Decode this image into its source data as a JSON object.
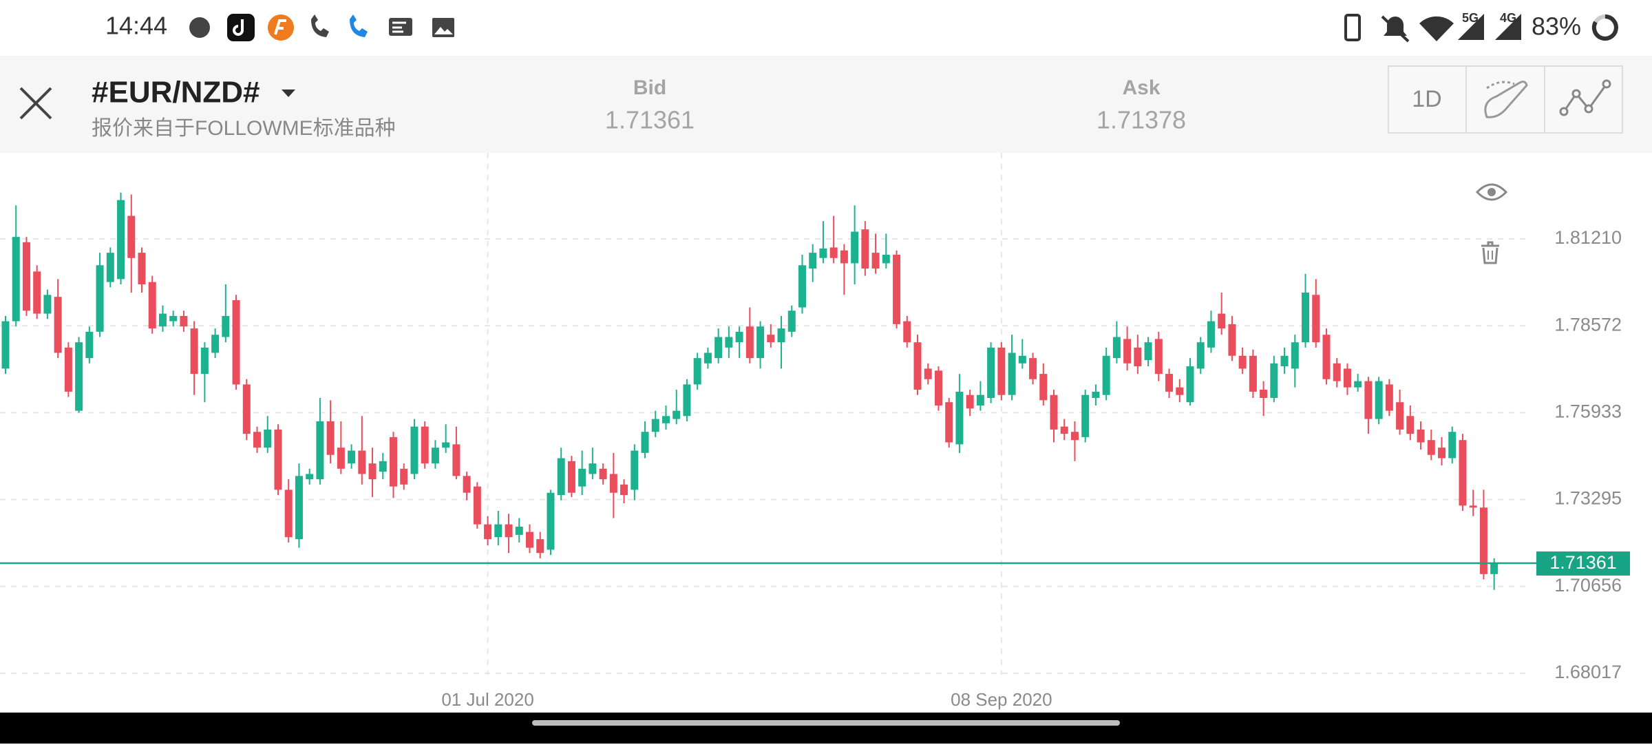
{
  "status_bar": {
    "time": "14:44",
    "network_labels": [
      "5G",
      "4G"
    ],
    "battery": "83%"
  },
  "header": {
    "symbol": "#EUR/NZD#",
    "subtitle": "报价来自于FOLLOWME标准品种",
    "bid": {
      "label": "Bid",
      "value": 1.71361
    },
    "ask": {
      "label": "Ask",
      "value": 1.71378
    },
    "timeframe": "1D"
  },
  "chart_data": {
    "type": "candlestick",
    "up_color": "#1db28f",
    "down_color": "#ea4d5b",
    "price_line_color": "#17a586",
    "grid": true,
    "ylim": [
      1.67555,
      1.83824
    ],
    "yticks": [
      {
        "value": 1.8121,
        "label": "1.81210"
      },
      1.78572,
      1.75933,
      1.73295,
      1.70656,
      1.68017
    ],
    "last_price": 1.71361,
    "categories": [
      null,
      null,
      null,
      null,
      null,
      null,
      null,
      null,
      null,
      null,
      null,
      null,
      null,
      null,
      null,
      null,
      null,
      null,
      null,
      null,
      null,
      null,
      null,
      null,
      null,
      null,
      null,
      null,
      null,
      null,
      null,
      null,
      null,
      null,
      null,
      null,
      null,
      null,
      null,
      null,
      null,
      null,
      null,
      null,
      null,
      null,
      "01 Jul 2020",
      null,
      null,
      null,
      null,
      null,
      null,
      null,
      null,
      null,
      null,
      null,
      null,
      null,
      null,
      null,
      null,
      null,
      null,
      null,
      null,
      null,
      null,
      null,
      null,
      null,
      null,
      null,
      null,
      null,
      null,
      null,
      null,
      null,
      null,
      null,
      null,
      null,
      null,
      null,
      null,
      null,
      null,
      null,
      null,
      null,
      null,
      null,
      null,
      "08 Sep 2020",
      null,
      null,
      null,
      null,
      null,
      null,
      null,
      null,
      null,
      null,
      null,
      null,
      null,
      null,
      null,
      null,
      null,
      null,
      null,
      null,
      null,
      null,
      null,
      null,
      null,
      null,
      null,
      null,
      null,
      null,
      null,
      null,
      null,
      null,
      null,
      null,
      null,
      null,
      null,
      null,
      null,
      null,
      null,
      null,
      null,
      null,
      null
    ],
    "candles": [
      [
        1.7727,
        1.7887,
        1.7711,
        1.7871
      ],
      [
        1.7871,
        1.8223,
        1.7855,
        1.8127
      ],
      [
        1.8111,
        1.8127,
        1.7887,
        1.7903
      ],
      [
        1.8022,
        1.8041,
        1.7878,
        1.7894
      ],
      [
        1.7894,
        1.7967,
        1.7878,
        1.7951
      ],
      [
        1.7945,
        1.7999,
        1.7759,
        1.7775
      ],
      [
        1.7791,
        1.7807,
        1.7641,
        1.7657
      ],
      [
        1.7599,
        1.7823,
        1.7593,
        1.7807
      ],
      [
        1.7759,
        1.7855,
        1.7743,
        1.7839
      ],
      [
        1.7839,
        1.8079,
        1.7823,
        1.8041
      ],
      [
        1.799,
        1.8095,
        1.7974,
        1.8079
      ],
      [
        1.7999,
        1.8262,
        1.7983,
        1.8239
      ],
      [
        1.8191,
        1.8256,
        1.7958,
        1.8063
      ],
      [
        1.8079,
        1.8095,
        1.7958,
        1.7983
      ],
      [
        1.799,
        1.8009,
        1.7833,
        1.7849
      ],
      [
        1.7855,
        1.7919,
        1.7839,
        1.7894
      ],
      [
        1.7871,
        1.7903,
        1.7855,
        1.7887
      ],
      [
        1.7887,
        1.7903,
        1.7839,
        1.7855
      ],
      [
        1.7849,
        1.7871,
        1.7647,
        1.7711
      ],
      [
        1.7711,
        1.7807,
        1.7625,
        1.7791
      ],
      [
        1.7775,
        1.7849,
        1.7759,
        1.783
      ],
      [
        1.7823,
        1.7983,
        1.7807,
        1.7887
      ],
      [
        1.7935,
        1.7951,
        1.7663,
        1.7679
      ],
      [
        1.7679,
        1.7695,
        1.751,
        1.7529
      ],
      [
        1.7535,
        1.7551,
        1.7471,
        1.7487
      ],
      [
        1.7487,
        1.7583,
        1.7471,
        1.7542
      ],
      [
        1.7542,
        1.7558,
        1.7343,
        1.7359
      ],
      [
        1.7359,
        1.7391,
        1.7199,
        1.7215
      ],
      [
        1.7209,
        1.7439,
        1.7183,
        1.7401
      ],
      [
        1.7391,
        1.7423,
        1.7375,
        1.7407
      ],
      [
        1.7391,
        1.7638,
        1.7375,
        1.7567
      ],
      [
        1.7567,
        1.7631,
        1.7439,
        1.7465
      ],
      [
        1.7487,
        1.7567,
        1.7407,
        1.7423
      ],
      [
        1.7439,
        1.7497,
        1.7423,
        1.7478
      ],
      [
        1.7478,
        1.7583,
        1.7375,
        1.7407
      ],
      [
        1.7439,
        1.7487,
        1.7337,
        1.7391
      ],
      [
        1.7414,
        1.7471,
        1.7391,
        1.7446
      ],
      [
        1.7519,
        1.7535,
        1.7334,
        1.7369
      ],
      [
        1.7423,
        1.7439,
        1.7359,
        1.7375
      ],
      [
        1.7407,
        1.7574,
        1.7391,
        1.7551
      ],
      [
        1.7551,
        1.7567,
        1.7423,
        1.7439
      ],
      [
        1.7439,
        1.751,
        1.7423,
        1.7487
      ],
      [
        1.7487,
        1.7558,
        1.7471,
        1.7503
      ],
      [
        1.7497,
        1.7551,
        1.7391,
        1.7401
      ],
      [
        1.7401,
        1.7414,
        1.7327,
        1.735
      ],
      [
        1.7369,
        1.7382,
        1.7241,
        1.7254
      ],
      [
        1.7254,
        1.7279,
        1.719,
        1.7209
      ],
      [
        1.7215,
        1.7295,
        1.719,
        1.7254
      ],
      [
        1.7254,
        1.7286,
        1.7167,
        1.7215
      ],
      [
        1.7222,
        1.7273,
        1.7199,
        1.7247
      ],
      [
        1.7231,
        1.7254,
        1.7167,
        1.7183
      ],
      [
        1.7209,
        1.7231,
        1.7151,
        1.7167
      ],
      [
        1.7177,
        1.7359,
        1.7161,
        1.735
      ],
      [
        1.7343,
        1.7487,
        1.7327,
        1.7455
      ],
      [
        1.7446,
        1.7462,
        1.7337,
        1.735
      ],
      [
        1.7369,
        1.7478,
        1.7343,
        1.7423
      ],
      [
        1.7407,
        1.7487,
        1.7391,
        1.7439
      ],
      [
        1.7423,
        1.7439,
        1.7375,
        1.7391
      ],
      [
        1.7407,
        1.7471,
        1.7273,
        1.735
      ],
      [
        1.7375,
        1.7391,
        1.7318,
        1.7343
      ],
      [
        1.7359,
        1.7497,
        1.7327,
        1.7478
      ],
      [
        1.7471,
        1.7567,
        1.7455,
        1.7535
      ],
      [
        1.7535,
        1.7599,
        1.7519,
        1.7574
      ],
      [
        1.7561,
        1.7615,
        1.7542,
        1.7583
      ],
      [
        1.7574,
        1.7663,
        1.7558,
        1.7599
      ],
      [
        1.7583,
        1.7695,
        1.7567,
        1.7679
      ],
      [
        1.7679,
        1.7775,
        1.7663,
        1.7759
      ],
      [
        1.7743,
        1.7791,
        1.7727,
        1.7775
      ],
      [
        1.7759,
        1.7849,
        1.7743,
        1.7823
      ],
      [
        1.7791,
        1.7855,
        1.7759,
        1.7823
      ],
      [
        1.7807,
        1.7855,
        1.7759,
        1.7839
      ],
      [
        1.7855,
        1.7913,
        1.7743,
        1.7759
      ],
      [
        1.7759,
        1.7871,
        1.7727,
        1.7855
      ],
      [
        1.783,
        1.7862,
        1.7791,
        1.7807
      ],
      [
        1.7807,
        1.7887,
        1.7727,
        1.7849
      ],
      [
        1.7839,
        1.7919,
        1.7823,
        1.7903
      ],
      [
        1.7913,
        1.8073,
        1.7894,
        1.8041
      ],
      [
        1.8031,
        1.8105,
        1.799,
        1.8079
      ],
      [
        1.8063,
        1.8175,
        1.8047,
        1.8092
      ],
      [
        1.8095,
        1.8191,
        1.8047,
        1.8063
      ],
      [
        1.8086,
        1.8105,
        1.7951,
        1.8047
      ],
      [
        1.8047,
        1.8223,
        1.7983,
        1.8143
      ],
      [
        1.815,
        1.8175,
        1.8009,
        1.8031
      ],
      [
        1.8079,
        1.8137,
        1.8015,
        1.8031
      ],
      [
        1.8047,
        1.8137,
        1.8031,
        1.8073
      ],
      [
        1.8073,
        1.8086,
        1.7849,
        1.7862
      ],
      [
        1.7871,
        1.7887,
        1.7791,
        1.7807
      ],
      [
        1.7807,
        1.783,
        1.7647,
        1.7663
      ],
      [
        1.7727,
        1.7743,
        1.7679,
        1.7695
      ],
      [
        1.7721,
        1.7734,
        1.7599,
        1.7615
      ],
      [
        1.7625,
        1.7638,
        1.7487,
        1.7503
      ],
      [
        1.7497,
        1.7711,
        1.7471,
        1.7657
      ],
      [
        1.7647,
        1.7663,
        1.7583,
        1.7606
      ],
      [
        1.7615,
        1.7689,
        1.7599,
        1.7647
      ],
      [
        1.7638,
        1.7807,
        1.7622,
        1.7791
      ],
      [
        1.7791,
        1.7807,
        1.7631,
        1.7647
      ],
      [
        1.7647,
        1.783,
        1.7631,
        1.7775
      ],
      [
        1.7743,
        1.7817,
        1.7727,
        1.7766
      ],
      [
        1.7759,
        1.7775,
        1.7679,
        1.7695
      ],
      [
        1.7711,
        1.7743,
        1.7615,
        1.7631
      ],
      [
        1.7647,
        1.7663,
        1.7503,
        1.7542
      ],
      [
        1.7551,
        1.7574,
        1.751,
        1.7529
      ],
      [
        1.7535,
        1.7567,
        1.7446,
        1.751
      ],
      [
        1.7519,
        1.7663,
        1.7503,
        1.7647
      ],
      [
        1.7638,
        1.7679,
        1.7615,
        1.7657
      ],
      [
        1.7647,
        1.7791,
        1.7631,
        1.7766
      ],
      [
        1.7759,
        1.7871,
        1.7743,
        1.7823
      ],
      [
        1.7817,
        1.7855,
        1.7721,
        1.7743
      ],
      [
        1.7791,
        1.783,
        1.7711,
        1.7734
      ],
      [
        1.7753,
        1.7823,
        1.7734,
        1.7807
      ],
      [
        1.7817,
        1.7839,
        1.7689,
        1.7711
      ],
      [
        1.7711,
        1.7727,
        1.7638,
        1.7657
      ],
      [
        1.767,
        1.7695,
        1.7625,
        1.7647
      ],
      [
        1.7625,
        1.7759,
        1.7615,
        1.7734
      ],
      [
        1.7727,
        1.7823,
        1.7711,
        1.7807
      ],
      [
        1.7791,
        1.7903,
        1.7775,
        1.7871
      ],
      [
        1.7894,
        1.7958,
        1.783,
        1.7849
      ],
      [
        1.7862,
        1.7887,
        1.775,
        1.7766
      ],
      [
        1.7766,
        1.7791,
        1.7711,
        1.7727
      ],
      [
        1.7766,
        1.7785,
        1.7638,
        1.7657
      ],
      [
        1.7663,
        1.7689,
        1.7583,
        1.7638
      ],
      [
        1.7638,
        1.7766,
        1.7625,
        1.7743
      ],
      [
        1.7734,
        1.7791,
        1.7711,
        1.7766
      ],
      [
        1.7727,
        1.783,
        1.767,
        1.7807
      ],
      [
        1.7807,
        1.8015,
        1.7791,
        1.7958
      ],
      [
        1.7951,
        1.7999,
        1.7791,
        1.7807
      ],
      [
        1.783,
        1.7849,
        1.7679,
        1.7695
      ],
      [
        1.7743,
        1.7759,
        1.767,
        1.7689
      ],
      [
        1.7727,
        1.7743,
        1.7647,
        1.767
      ],
      [
        1.767,
        1.7711,
        1.7657,
        1.7689
      ],
      [
        1.7689,
        1.7702,
        1.7529,
        1.7574
      ],
      [
        1.7574,
        1.7702,
        1.7558,
        1.7689
      ],
      [
        1.7679,
        1.7695,
        1.7583,
        1.7599
      ],
      [
        1.7625,
        1.7663,
        1.7526,
        1.7542
      ],
      [
        1.7583,
        1.7615,
        1.751,
        1.7529
      ],
      [
        1.7542,
        1.7567,
        1.7481,
        1.7503
      ],
      [
        1.751,
        1.7542,
        1.7449,
        1.7465
      ],
      [
        1.7487,
        1.7519,
        1.7433,
        1.7455
      ],
      [
        1.7455,
        1.7551,
        1.7439,
        1.7535
      ],
      [
        1.751,
        1.7529,
        1.7295,
        1.7311
      ],
      [
        1.7311,
        1.7359,
        1.7279,
        1.7305
      ],
      [
        1.7305,
        1.7359,
        1.7087,
        1.7103
      ],
      [
        1.7103,
        1.7151,
        1.7055,
        1.7136
      ]
    ]
  }
}
